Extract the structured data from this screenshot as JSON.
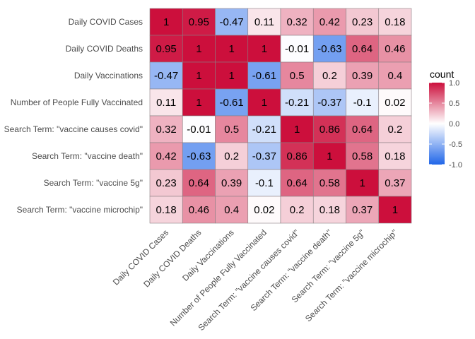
{
  "chart_data": {
    "type": "heatmap",
    "rows": [
      "Daily COVID Cases",
      "Daily COVID Deaths",
      "Daily Vaccinations",
      "Number of People Fully Vaccinated",
      "Search Term: \"vaccine causes covid\"",
      "Search Term: \"vaccine death\"",
      "Search Term: \"vaccine 5g\"",
      "Search Term: \"vaccine microchip\""
    ],
    "columns": [
      "Daily COVID Cases",
      "Daily COVID Deaths",
      "Daily Vaccinations",
      "Number of People Fully Vaccinated",
      "Search Term: \"vaccine causes covid\"",
      "Search Term: \"vaccine death\"",
      "Search Term: \"vaccine 5g\"",
      "Search Term: \"vaccine microchip\""
    ],
    "values": [
      [
        1,
        0.95,
        -0.47,
        0.11,
        0.32,
        0.42,
        0.23,
        0.18
      ],
      [
        0.95,
        1,
        1,
        1,
        -0.01,
        -0.63,
        0.64,
        0.46
      ],
      [
        -0.47,
        1,
        1,
        -0.61,
        0.5,
        0.2,
        0.39,
        0.4
      ],
      [
        0.11,
        1,
        -0.61,
        1,
        -0.21,
        -0.37,
        -0.1,
        0.02
      ],
      [
        0.32,
        -0.01,
        0.5,
        -0.21,
        1,
        0.86,
        0.64,
        0.2
      ],
      [
        0.42,
        -0.63,
        0.2,
        -0.37,
        0.86,
        1,
        0.58,
        0.18
      ],
      [
        0.23,
        0.64,
        0.39,
        -0.1,
        0.64,
        0.58,
        1,
        0.37
      ],
      [
        0.18,
        0.46,
        0.4,
        0.02,
        0.2,
        0.18,
        0.37,
        1
      ]
    ],
    "legend": {
      "title": "count",
      "ticks": [
        "1.0",
        "0.5",
        "0.0",
        "-0.5",
        "-1.0"
      ],
      "tick_values": [
        1,
        0.5,
        0,
        -0.5,
        -1
      ],
      "placement": "right"
    },
    "color_scale": {
      "low": "#2166e8",
      "mid": "#ffffff",
      "high": "#cc0f3c",
      "range": [
        -1,
        1
      ]
    }
  }
}
